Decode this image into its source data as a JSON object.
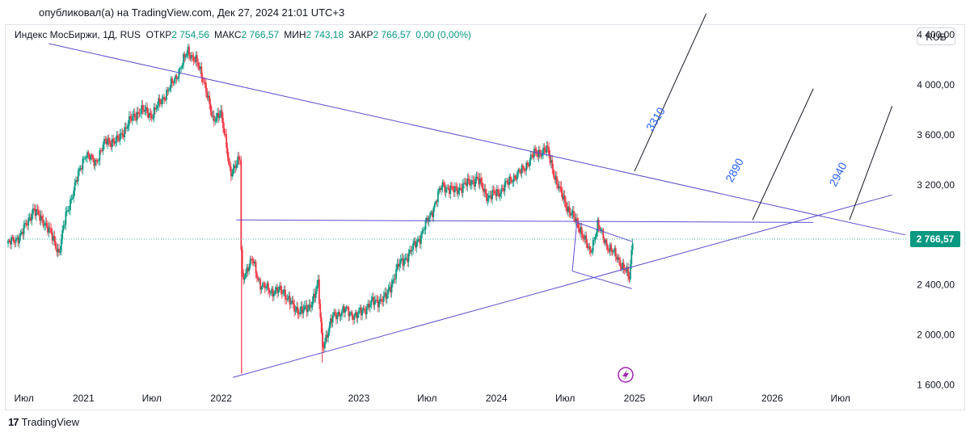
{
  "published": "опубликовал(а) на TradingView.com, Дек 27, 2024 21:01 UTC+3",
  "legend": {
    "symbol": "Индекс МосБиржи, 1Д, RUS",
    "open_label": "ОТКР",
    "open_value": "2 754,56",
    "high_label": "МАКС",
    "high_value": "2 766,57",
    "low_label": "МИН",
    "low_value": "2 743,18",
    "close_label": "ЗАКР",
    "close_value": "2 766,57",
    "change": "0,00 (0,00%)"
  },
  "currency_button": "RUB",
  "footer": {
    "logo": "17",
    "brand": "TradingView"
  },
  "colors": {
    "up": "#089981",
    "down": "#f23645",
    "trendline": "#5b4fcf",
    "projection_text": "#2962ff",
    "price_tag": "#089981"
  },
  "chart_data": {
    "type": "candlestick",
    "y_ticks": [
      "4 400,00",
      "4 000,00",
      "3 600,00",
      "3 200,00",
      "2 400,00",
      "2 000,00",
      "1 600,00"
    ],
    "y_tick_values": [
      4400,
      4000,
      3600,
      3200,
      2400,
      2000,
      1600
    ],
    "x_ticks": [
      "Июл",
      "2021",
      "Июл",
      "2022",
      "2023",
      "Июл",
      "2024",
      "Июл",
      "2025",
      "Июл",
      "2026",
      "Июл"
    ],
    "x_tick_dates": [
      "2020-07-01",
      "2021-01-01",
      "2021-07-01",
      "2022-01-01",
      "2023-01-01",
      "2023-07-01",
      "2024-01-01",
      "2024-07-01",
      "2025-01-01",
      "2025-07-01",
      "2026-01-01",
      "2026-07-01"
    ],
    "last_price": "2 766,57",
    "last_price_value": 2766.57,
    "series_path": [
      [
        "2020-06-15",
        2730
      ],
      [
        "2020-07-20",
        2800
      ],
      [
        "2020-08-20",
        3000
      ],
      [
        "2020-09-20",
        2900
      ],
      [
        "2020-10-10",
        2780
      ],
      [
        "2020-10-28",
        2660
      ],
      [
        "2020-11-15",
        2950
      ],
      [
        "2020-12-10",
        3200
      ],
      [
        "2021-01-05",
        3450
      ],
      [
        "2021-02-01",
        3380
      ],
      [
        "2021-03-01",
        3550
      ],
      [
        "2021-04-01",
        3550
      ],
      [
        "2021-05-01",
        3700
      ],
      [
        "2021-06-01",
        3800
      ],
      [
        "2021-07-01",
        3760
      ],
      [
        "2021-08-01",
        3900
      ],
      [
        "2021-09-01",
        4050
      ],
      [
        "2021-10-05",
        4270
      ],
      [
        "2021-10-25",
        4200
      ],
      [
        "2021-11-20",
        4000
      ],
      [
        "2021-12-10",
        3700
      ],
      [
        "2021-12-30",
        3800
      ],
      [
        "2022-01-25",
        3300
      ],
      [
        "2022-02-20",
        3400
      ],
      [
        "2022-02-24",
        2450
      ],
      [
        "2022-03-25",
        2600
      ],
      [
        "2022-04-15",
        2400
      ],
      [
        "2022-05-15",
        2350
      ],
      [
        "2022-06-15",
        2350
      ],
      [
        "2022-07-15",
        2200
      ],
      [
        "2022-08-20",
        2200
      ],
      [
        "2022-09-15",
        2400
      ],
      [
        "2022-09-26",
        1900
      ],
      [
        "2022-10-25",
        2150
      ],
      [
        "2022-11-25",
        2200
      ],
      [
        "2022-12-25",
        2150
      ],
      [
        "2023-02-01",
        2250
      ],
      [
        "2023-03-15",
        2300
      ],
      [
        "2023-04-15",
        2550
      ],
      [
        "2023-05-15",
        2650
      ],
      [
        "2023-06-15",
        2800
      ],
      [
        "2023-07-15",
        3000
      ],
      [
        "2023-08-10",
        3200
      ],
      [
        "2023-09-10",
        3150
      ],
      [
        "2023-10-10",
        3200
      ],
      [
        "2023-11-10",
        3250
      ],
      [
        "2023-12-10",
        3100
      ],
      [
        "2024-01-10",
        3150
      ],
      [
        "2024-02-10",
        3250
      ],
      [
        "2024-03-10",
        3320
      ],
      [
        "2024-04-10",
        3450
      ],
      [
        "2024-05-15",
        3480
      ],
      [
        "2024-06-10",
        3200
      ],
      [
        "2024-07-10",
        3000
      ],
      [
        "2024-08-10",
        2850
      ],
      [
        "2024-09-05",
        2650
      ],
      [
        "2024-09-25",
        2880
      ],
      [
        "2024-10-20",
        2720
      ],
      [
        "2024-11-20",
        2600
      ],
      [
        "2024-12-05",
        2530
      ],
      [
        "2024-12-18",
        2450
      ],
      [
        "2024-12-27",
        2766.57
      ]
    ],
    "annotations": [
      "3310",
      "2890",
      "2940"
    ],
    "ylim": [
      1500,
      4550
    ],
    "xlim": [
      "2020-06-15",
      "2026-12-20"
    ],
    "grid": false
  }
}
